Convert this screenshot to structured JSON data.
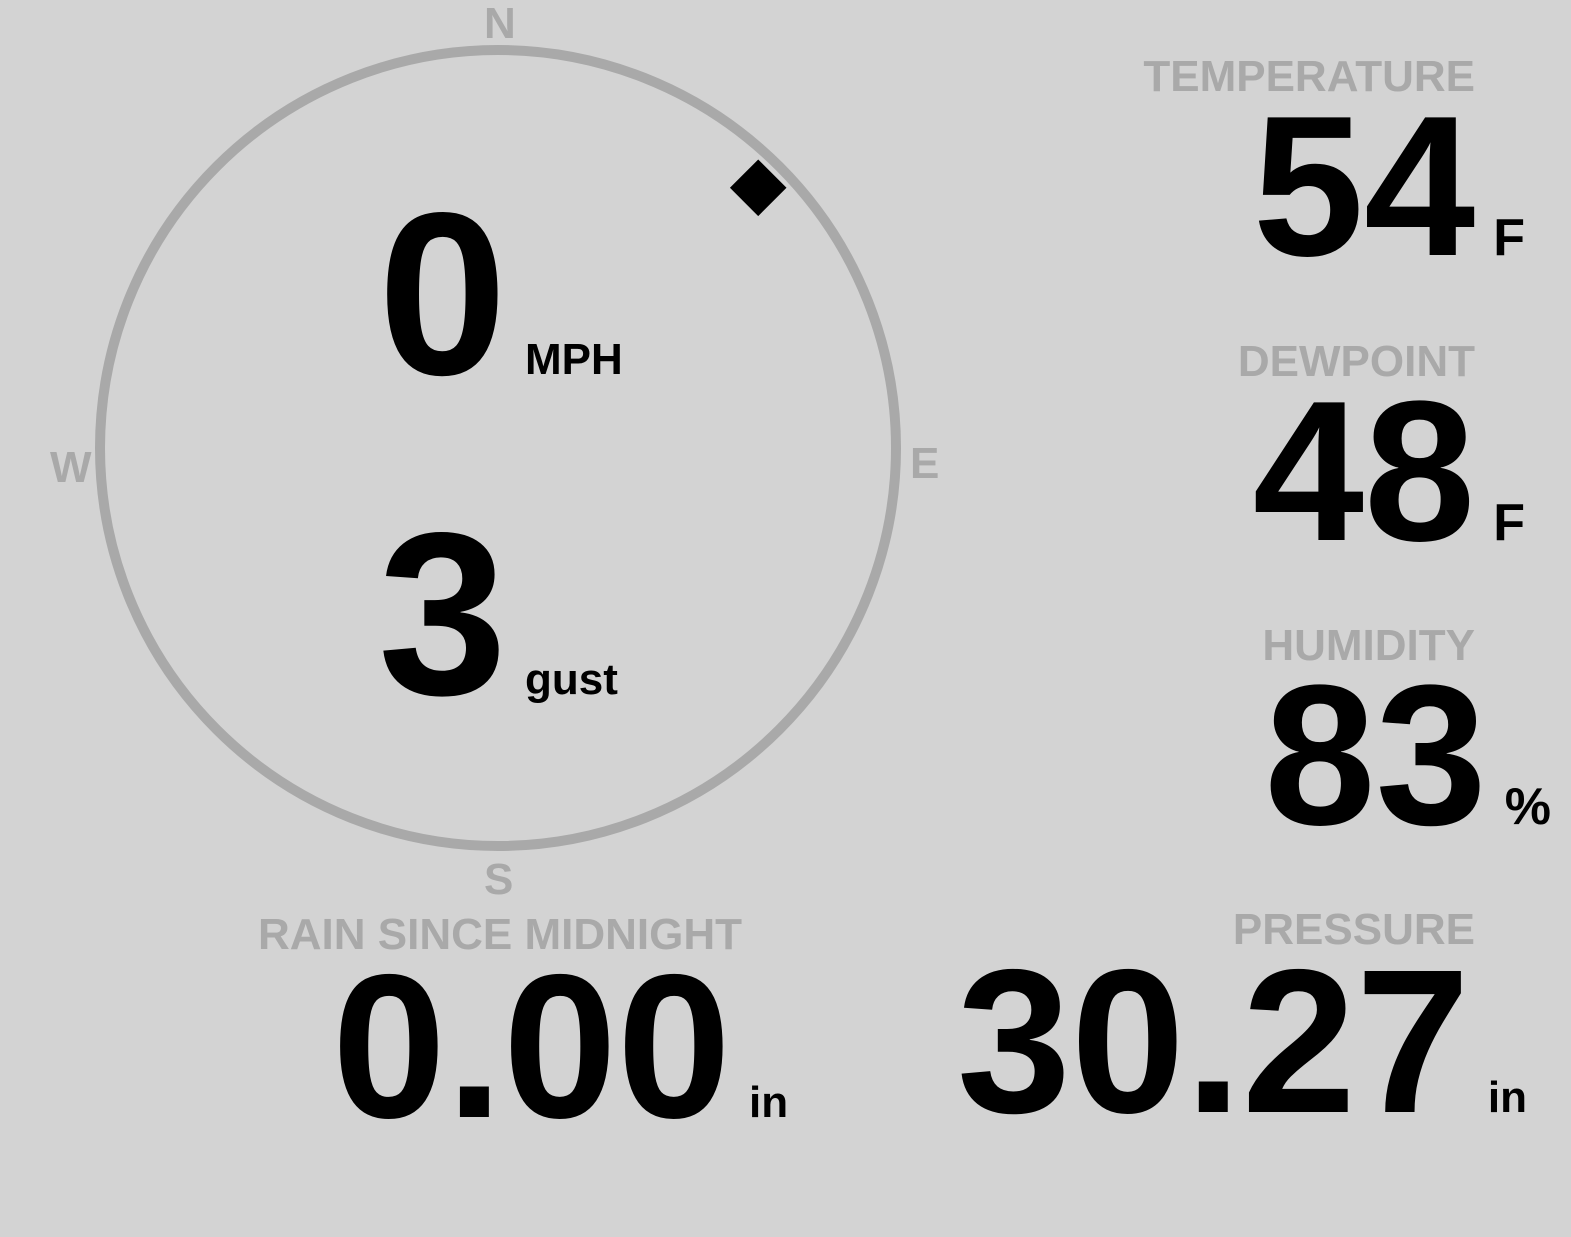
{
  "wind": {
    "compass_labels": {
      "n": "N",
      "e": "E",
      "s": "S",
      "w": "W"
    },
    "direction_deg": 45,
    "speed": "0",
    "speed_unit": "MPH",
    "gust": "3",
    "gust_unit": "gust"
  },
  "temperature": {
    "label": "TEMPERATURE",
    "value": "54",
    "unit": "F"
  },
  "dewpoint": {
    "label": "DEWPOINT",
    "value": "48",
    "unit": "F"
  },
  "humidity": {
    "label": "HUMIDITY",
    "value": "83",
    "unit": "%"
  },
  "pressure": {
    "label": "PRESSURE",
    "value": "30.27",
    "unit": "in"
  },
  "rain": {
    "label": "RAIN SINCE MIDNIGHT",
    "value": "0.00",
    "unit": "in"
  },
  "colors": {
    "background": "#d3d3d3",
    "label": "#a9a9a9",
    "value": "#000000"
  }
}
